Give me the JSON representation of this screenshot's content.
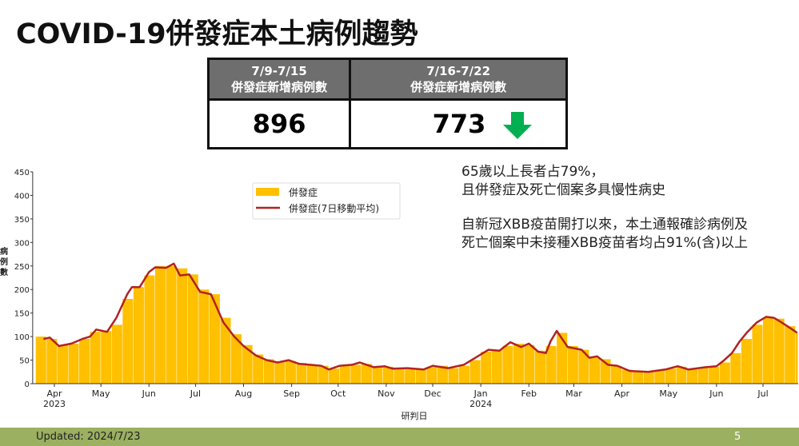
{
  "title": "COVID-19併發症本土病例趨勢",
  "comparison": {
    "headers": [
      {
        "range": "7/9-7/15",
        "label": "併發症新增病例數"
      },
      {
        "range": "7/16-7/22",
        "label": "併發症新增病例數"
      }
    ],
    "values": [
      "896",
      "773"
    ],
    "trend_icon": "arrow-down-icon",
    "trend_color": "#00b050"
  },
  "notes": [
    "65歲以上長者占79%，",
    "且併發症及死亡個案多具慢性病史",
    "自新冠XBB疫苗開打以來，本土通報確診病例及",
    "死亡個案中未接種XBB疫苗者均占91%(含)以上"
  ],
  "footer": {
    "updated": "Updated: 2024/7/23",
    "page": "5"
  },
  "chart_data": {
    "type": "bar+line",
    "xlabel": "研判日",
    "ylabel": "病例數",
    "ylim": [
      0,
      450
    ],
    "yticks": [
      "0",
      "50",
      "100",
      "150",
      "200",
      "250",
      "300",
      "350",
      "400",
      "450"
    ],
    "xticks": [
      {
        "date": "2023-04-01",
        "label": "Apr",
        "year": "2023"
      },
      {
        "date": "2023-05-01",
        "label": "May"
      },
      {
        "date": "2023-06-01",
        "label": "Jun"
      },
      {
        "date": "2023-07-01",
        "label": "Jul"
      },
      {
        "date": "2023-08-01",
        "label": "Aug"
      },
      {
        "date": "2023-09-01",
        "label": "Sep"
      },
      {
        "date": "2023-10-01",
        "label": "Oct"
      },
      {
        "date": "2023-11-01",
        "label": "Nov"
      },
      {
        "date": "2023-12-01",
        "label": "Dec"
      },
      {
        "date": "2024-01-01",
        "label": "Jan",
        "year": "2024"
      },
      {
        "date": "2024-02-01",
        "label": "Feb"
      },
      {
        "date": "2024-03-01",
        "label": "Mar"
      },
      {
        "date": "2024-04-01",
        "label": "Apr"
      },
      {
        "date": "2024-05-01",
        "label": "May"
      },
      {
        "date": "2024-06-01",
        "label": "Jun"
      },
      {
        "date": "2024-07-01",
        "label": "Jul"
      }
    ],
    "xlim": [
      "2023-03-18",
      "2024-07-24"
    ],
    "legend_position": "top-center",
    "series": [
      {
        "name": "併發症",
        "type": "bar",
        "color": "#ffc000",
        "week_start": [
          "2023-03-20",
          "2023-03-27",
          "2023-04-03",
          "2023-04-10",
          "2023-04-17",
          "2023-04-24",
          "2023-05-01",
          "2023-05-08",
          "2023-05-15",
          "2023-05-22",
          "2023-05-29",
          "2023-06-05",
          "2023-06-12",
          "2023-06-19",
          "2023-06-26",
          "2023-07-03",
          "2023-07-10",
          "2023-07-17",
          "2023-07-24",
          "2023-07-31",
          "2023-08-07",
          "2023-08-14",
          "2023-08-21",
          "2023-08-28",
          "2023-09-04",
          "2023-09-11",
          "2023-09-18",
          "2023-09-25",
          "2023-10-02",
          "2023-10-09",
          "2023-10-16",
          "2023-10-23",
          "2023-10-30",
          "2023-11-06",
          "2023-11-13",
          "2023-11-20",
          "2023-11-27",
          "2023-12-04",
          "2023-12-11",
          "2023-12-18",
          "2023-12-25",
          "2024-01-01",
          "2024-01-08",
          "2024-01-15",
          "2024-01-22",
          "2024-01-29",
          "2024-02-05",
          "2024-02-12",
          "2024-02-19",
          "2024-02-26",
          "2024-03-04",
          "2024-03-11",
          "2024-03-18",
          "2024-03-25",
          "2024-04-01",
          "2024-04-08",
          "2024-04-15",
          "2024-04-22",
          "2024-04-29",
          "2024-05-06",
          "2024-05-13",
          "2024-05-20",
          "2024-05-27",
          "2024-06-03",
          "2024-06-10",
          "2024-06-17",
          "2024-06-24",
          "2024-07-01",
          "2024-07-08",
          "2024-07-15",
          "2024-07-22"
        ],
        "values": [
          100,
          95,
          82,
          85,
          95,
          110,
          112,
          125,
          180,
          205,
          230,
          250,
          250,
          245,
          232,
          200,
          190,
          140,
          105,
          82,
          62,
          52,
          46,
          48,
          44,
          40,
          38,
          32,
          38,
          40,
          42,
          36,
          36,
          32,
          33,
          30,
          35,
          38,
          33,
          38,
          50,
          68,
          72,
          80,
          85,
          82,
          70,
          80,
          108,
          80,
          72,
          57,
          52,
          38,
          30,
          26,
          26,
          28,
          32,
          36,
          32,
          34,
          36,
          45,
          65,
          95,
          125,
          140,
          138,
          122,
          108
        ]
      },
      {
        "name": "併發症(7日移動平均)",
        "type": "line",
        "color": "#b22222",
        "dates": [
          "2023-03-25",
          "2023-03-29",
          "2023-04-04",
          "2023-04-12",
          "2023-04-19",
          "2023-04-24",
          "2023-04-28",
          "2023-05-05",
          "2023-05-11",
          "2023-05-18",
          "2023-05-21",
          "2023-05-26",
          "2023-06-01",
          "2023-06-05",
          "2023-06-12",
          "2023-06-17",
          "2023-06-21",
          "2023-06-27",
          "2023-07-04",
          "2023-07-11",
          "2023-07-19",
          "2023-07-26",
          "2023-08-01",
          "2023-08-09",
          "2023-08-16",
          "2023-08-23",
          "2023-08-30",
          "2023-09-06",
          "2023-09-13",
          "2023-09-20",
          "2023-09-25",
          "2023-10-02",
          "2023-10-10",
          "2023-10-15",
          "2023-10-24",
          "2023-10-31",
          "2023-11-05",
          "2023-11-15",
          "2023-11-25",
          "2023-12-01",
          "2023-12-11",
          "2023-12-21",
          "2023-12-30",
          "2024-01-06",
          "2024-01-13",
          "2024-01-20",
          "2024-01-27",
          "2024-02-01",
          "2024-02-07",
          "2024-02-12",
          "2024-02-15",
          "2024-02-19",
          "2024-02-26",
          "2024-03-06",
          "2024-03-11",
          "2024-03-16",
          "2024-03-23",
          "2024-03-29",
          "2024-04-06",
          "2024-04-18",
          "2024-04-29",
          "2024-05-07",
          "2024-05-14",
          "2024-05-25",
          "2024-06-01",
          "2024-06-06",
          "2024-06-11",
          "2024-06-16",
          "2024-06-21",
          "2024-06-27",
          "2024-07-03",
          "2024-07-08",
          "2024-07-13",
          "2024-07-20",
          "2024-07-23"
        ],
        "values": [
          95,
          98,
          80,
          85,
          95,
          100,
          115,
          110,
          140,
          190,
          205,
          205,
          237,
          247,
          246,
          255,
          230,
          232,
          195,
          190,
          130,
          100,
          80,
          60,
          50,
          45,
          50,
          42,
          40,
          38,
          30,
          38,
          40,
          45,
          35,
          37,
          32,
          33,
          30,
          38,
          33,
          40,
          58,
          72,
          70,
          88,
          78,
          85,
          68,
          65,
          90,
          112,
          78,
          72,
          55,
          58,
          40,
          38,
          27,
          25,
          30,
          37,
          30,
          35,
          37,
          50,
          65,
          90,
          110,
          130,
          142,
          140,
          130,
          115,
          108
        ]
      }
    ]
  }
}
